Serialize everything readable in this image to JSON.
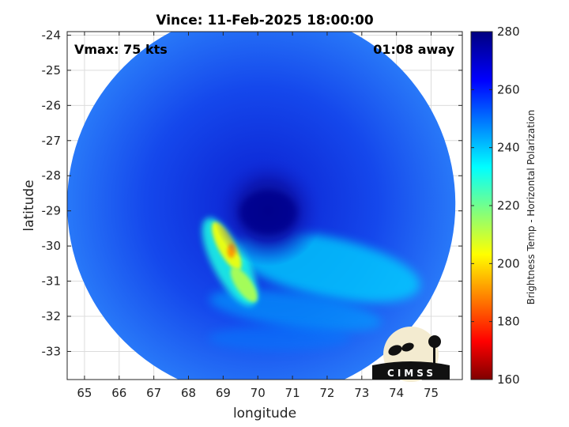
{
  "chart_data": {
    "type": "heatmap",
    "title": "Vince: 11-Feb-2025 18:00:00",
    "xlabel": "longitude",
    "ylabel": "latitude",
    "xlim": [
      64.5,
      75.9
    ],
    "ylim": [
      -33.8,
      -23.9
    ],
    "xticks": [
      65,
      66,
      67,
      68,
      69,
      70,
      71,
      72,
      73,
      74,
      75
    ],
    "yticks": [
      -24,
      -25,
      -26,
      -27,
      -28,
      -29,
      -30,
      -31,
      -32,
      -33
    ],
    "grid": true,
    "swath": {
      "shape": "circle",
      "center": [
        70.1,
        -28.8
      ],
      "radius_deg_lon": 5.6
    },
    "storm_center": [
      70.2,
      -29.0
    ],
    "colorbar": {
      "label": "Brightness Temp - Horizontal Polarization",
      "range": [
        160,
        280
      ],
      "ticks": [
        160,
        180,
        200,
        220,
        240,
        260,
        280
      ],
      "colormap": "jet"
    },
    "features": [
      {
        "name": "eye",
        "lon": 70.3,
        "lat": -29.0,
        "value": 268
      },
      {
        "name": "cold-band-west",
        "lon": 69.1,
        "lat": -30.0,
        "value": 205
      },
      {
        "name": "cold-band-south",
        "lon": 69.6,
        "lat": -31.1,
        "value": 212
      },
      {
        "name": "rainband-southeast",
        "lon": 72.0,
        "lat": -30.6,
        "value": 238
      }
    ]
  },
  "annotations": {
    "vmax": "Vmax: 75 kts",
    "time_away": "01:08 away"
  },
  "logo": {
    "text": "CIMSS"
  }
}
